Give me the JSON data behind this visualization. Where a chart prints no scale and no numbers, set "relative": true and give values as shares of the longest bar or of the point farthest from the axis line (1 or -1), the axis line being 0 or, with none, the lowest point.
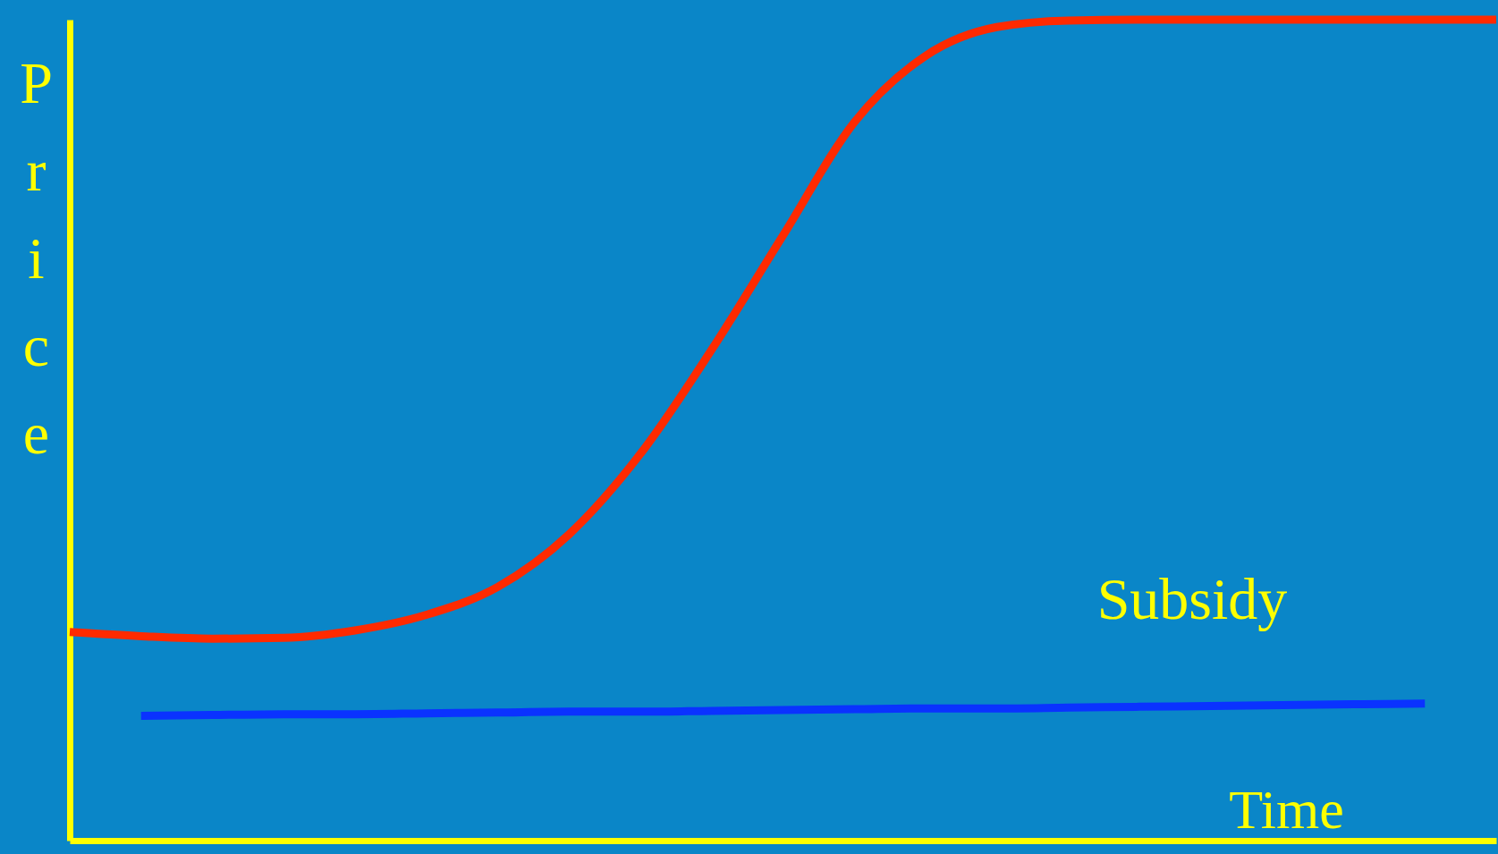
{
  "chart_data": {
    "type": "line",
    "relative": true,
    "xlabel": "Time",
    "ylabel": "Price",
    "grid": false,
    "tick_labels": false,
    "marker": "none",
    "line_style": "solid",
    "categories": [
      null,
      null,
      null,
      null,
      null,
      null,
      null,
      null,
      null,
      null,
      null,
      null,
      null,
      null,
      null,
      null,
      null,
      null,
      null,
      null,
      null
    ],
    "series": [
      {
        "color": "#ff2a00",
        "values": [
          0.254,
          0.249,
          0.246,
          0.247,
          0.256,
          0.275,
          0.309,
          0.373,
          0.471,
          0.598,
          0.737,
          0.875,
          0.956,
          0.991,
          0.999,
          1,
          1,
          1,
          1,
          1,
          1
        ]
      },
      {
        "color": "#0a32ff",
        "values": [
          null,
          0.152,
          0.153,
          0.154,
          0.154,
          0.155,
          0.156,
          0.157,
          0.157,
          0.158,
          0.159,
          0.16,
          0.161,
          0.161,
          0.162,
          0.163,
          0.164,
          0.165,
          0.166,
          0.167,
          null
        ]
      }
    ],
    "annotations": [
      "Subsidy"
    ]
  }
}
